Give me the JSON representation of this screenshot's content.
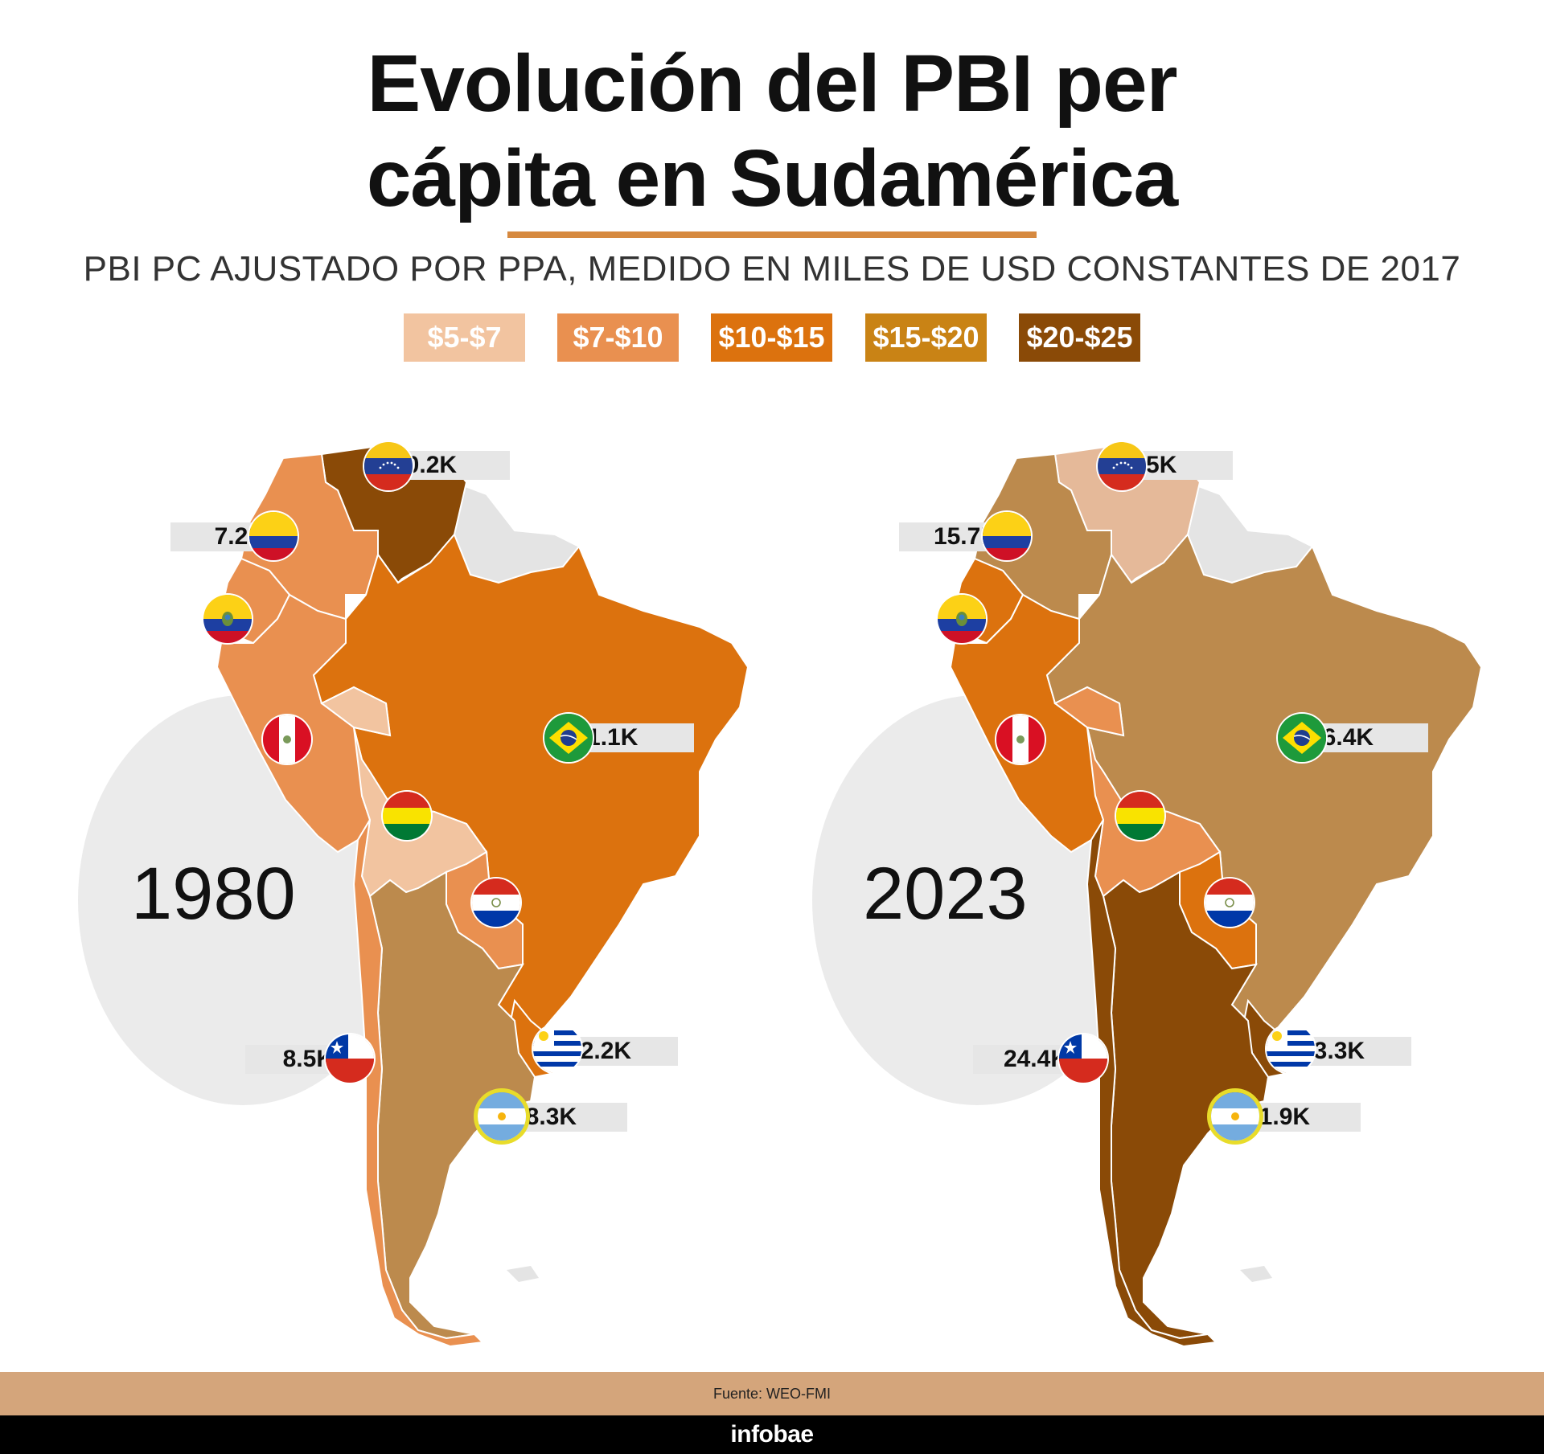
{
  "title_line1": "Evolución del PBI per",
  "title_line2": "cápita en Sudamérica",
  "subtitle": "PBI PC AJUSTADO POR PPA, MEDIDO EN MILES DE USD CONSTANTES DE 2017",
  "legend": [
    {
      "label": "$5-$7",
      "color": "#f2c4a0"
    },
    {
      "label": "$7-$10",
      "color": "#e99050"
    },
    {
      "label": "$10-$15",
      "color": "#dc720e"
    },
    {
      "label": "$15-$20",
      "color": "#c98315"
    },
    {
      "label": "$20-$25",
      "color": "#8a4a07"
    }
  ],
  "no_data_color": "#e4e4e4",
  "maps": [
    {
      "year": "1980",
      "countries": {
        "venezuela": {
          "value": "20.2K",
          "color": "#8a4a07"
        },
        "colombia": {
          "value": "7.2K",
          "color": "#e99050"
        },
        "ecuador": {
          "color": "#e99050"
        },
        "peru": {
          "color": "#e99050"
        },
        "brazil": {
          "value": "11.1K",
          "color": "#dc720e"
        },
        "bolivia": {
          "color": "#f2c4a0"
        },
        "paraguay": {
          "color": "#e99050"
        },
        "chile": {
          "value": "8.5K",
          "color": "#e99050"
        },
        "uruguay": {
          "value": "12.2K",
          "color": "#dc720e"
        },
        "argentina": {
          "value": "18.3K",
          "color": "#bc8a4d"
        }
      }
    },
    {
      "year": "2023",
      "countries": {
        "venezuela": {
          "value": "6.5K",
          "color": "#e5b999"
        },
        "colombia": {
          "value": "15.7K",
          "color": "#bc8a4d"
        },
        "ecuador": {
          "color": "#dc720e"
        },
        "peru": {
          "color": "#dc720e"
        },
        "brazil": {
          "value": "16.4K",
          "color": "#bc8a4d"
        },
        "bolivia": {
          "color": "#e99050"
        },
        "paraguay": {
          "color": "#dc720e"
        },
        "chile": {
          "value": "24.4K",
          "color": "#8a4a07"
        },
        "uruguay": {
          "value": "23.3K",
          "color": "#8a4a07"
        },
        "argentina": {
          "value": "21.9K",
          "color": "#8a4a07"
        }
      }
    }
  ],
  "source": "Fuente: WEO-FMI",
  "brand": "infobae"
}
